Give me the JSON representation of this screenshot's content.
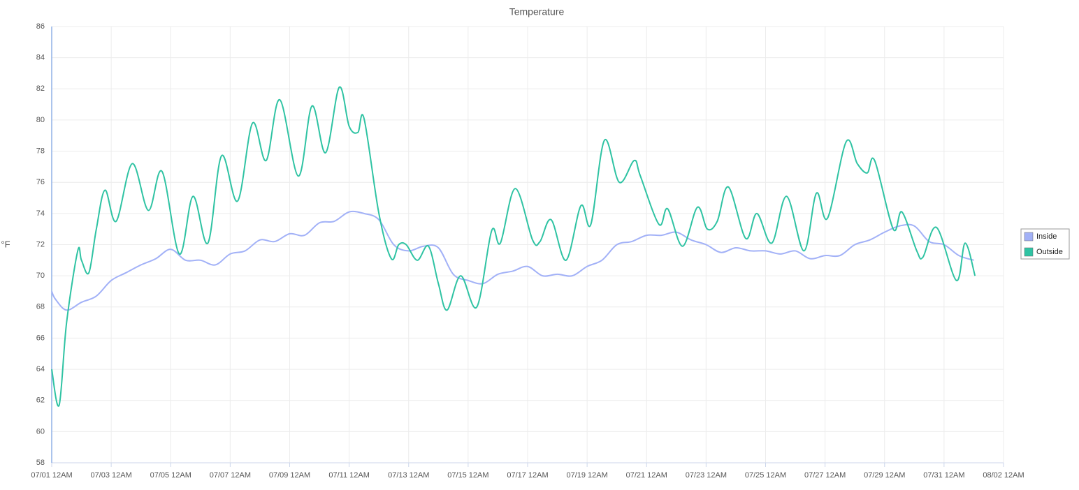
{
  "chart_data": {
    "type": "line",
    "title": "Temperature",
    "y_label": "°F",
    "xlim": [
      "07/01 12AM",
      "08/02 12AM"
    ],
    "xticks": [
      "07/01 12AM",
      "07/03 12AM",
      "07/05 12AM",
      "07/07 12AM",
      "07/09 12AM",
      "07/11 12AM",
      "07/13 12AM",
      "07/15 12AM",
      "07/17 12AM",
      "07/19 12AM",
      "07/21 12AM",
      "07/23 12AM",
      "07/25 12AM",
      "07/27 12AM",
      "07/29 12AM",
      "07/31 12AM",
      "08/02 12AM"
    ],
    "ylim": [
      58,
      86
    ],
    "yticks": [
      58,
      60,
      62,
      64,
      66,
      68,
      70,
      72,
      74,
      76,
      78,
      80,
      82,
      84,
      86
    ],
    "grid": true,
    "legend": "right",
    "series": [
      {
        "name": "Inside",
        "color": "#a2b1f7",
        "x": [
          "07/01 12AM",
          "07/01 3AM",
          "07/01 12PM",
          "07/02 12AM",
          "07/02 12PM",
          "07/03 12AM",
          "07/03 12PM",
          "07/04 12AM",
          "07/04 12PM",
          "07/05 12AM",
          "07/05 12PM",
          "07/06 12AM",
          "07/06 12PM",
          "07/07 12AM",
          "07/07 12PM",
          "07/08 12AM",
          "07/08 12PM",
          "07/09 12AM",
          "07/09 12PM",
          "07/10 12AM",
          "07/10 12PM",
          "07/11 12AM",
          "07/11 12PM",
          "07/12 12AM",
          "07/12 12PM",
          "07/13 12AM",
          "07/13 12PM",
          "07/14 12AM",
          "07/14 12PM",
          "07/15 12AM",
          "07/15 12PM",
          "07/16 12AM",
          "07/16 12PM",
          "07/17 12AM",
          "07/17 12PM",
          "07/18 12AM",
          "07/18 12PM",
          "07/19 12AM",
          "07/19 12PM",
          "07/20 12AM",
          "07/20 12PM",
          "07/21 12AM",
          "07/21 12PM",
          "07/22 12AM",
          "07/22 12PM",
          "07/23 12AM",
          "07/23 12PM",
          "07/24 12AM",
          "07/24 12PM",
          "07/25 12AM",
          "07/25 12PM",
          "07/26 12AM",
          "07/26 12PM",
          "07/27 12AM",
          "07/27 12PM",
          "07/28 12AM",
          "07/28 12PM",
          "07/29 12AM",
          "07/29 12PM",
          "07/30 12AM",
          "07/30 12PM",
          "07/31 12AM",
          "07/31 12PM",
          "08/01 12AM"
        ],
        "values": [
          69.0,
          68.5,
          67.8,
          68.3,
          68.7,
          69.7,
          70.2,
          70.7,
          71.1,
          71.7,
          71.0,
          71.0,
          70.7,
          71.4,
          71.6,
          72.3,
          72.2,
          72.7,
          72.6,
          73.4,
          73.5,
          74.1,
          74.0,
          73.6,
          72.0,
          71.6,
          71.9,
          71.8,
          70.1,
          69.7,
          69.5,
          70.1,
          70.3,
          70.6,
          70.0,
          70.1,
          70.0,
          70.6,
          71.0,
          72.0,
          72.2,
          72.6,
          72.6,
          72.8,
          72.3,
          72.0,
          71.5,
          71.8,
          71.6,
          71.6,
          71.4,
          71.6,
          71.1,
          71.3,
          71.3,
          72.0,
          72.3,
          72.8,
          73.2,
          73.2,
          72.2,
          72.0,
          71.3,
          71.0
        ]
      },
      {
        "name": "Outside",
        "color": "#2fc3a3",
        "x": [
          "07/01 12AM",
          "07/01 6AM",
          "07/01 12PM",
          "07/01 9PM",
          "07/02 12AM",
          "07/02 6AM",
          "07/02 12PM",
          "07/02 7PM",
          "07/03 4AM",
          "07/03 5PM",
          "07/04 6AM",
          "07/04 5PM",
          "07/05 7AM",
          "07/05 6PM",
          "07/06 6AM",
          "07/06 5PM",
          "07/07 6AM",
          "07/07 6PM",
          "07/08 5AM",
          "07/08 4PM",
          "07/09 7AM",
          "07/09 6PM",
          "07/10 5AM",
          "07/10 4PM",
          "07/11 12AM",
          "07/11 7AM",
          "07/11 12PM",
          "07/12 12AM",
          "07/12 10AM",
          "07/12 4PM",
          "07/12 10PM",
          "07/13 7AM",
          "07/13 4PM",
          "07/14 12AM",
          "07/14 7AM",
          "07/14 6PM",
          "07/15 7AM",
          "07/15 7PM",
          "07/16 2AM",
          "07/16 2PM",
          "07/17 4AM",
          "07/17 10AM",
          "07/17 7PM",
          "07/18 7AM",
          "07/18 7PM",
          "07/19 3AM",
          "07/19 2PM",
          "07/20 2AM",
          "07/20 2PM",
          "07/20 7PM",
          "07/21 10AM",
          "07/21 5PM",
          "07/22 5AM",
          "07/22 5PM",
          "07/23 1AM",
          "07/23 9AM",
          "07/23 6PM",
          "07/24 8AM",
          "07/24 5PM",
          "07/25 5AM",
          "07/25 5PM",
          "07/26 7AM",
          "07/26 5PM",
          "07/27 2AM",
          "07/27 5PM",
          "07/28 2AM",
          "07/28 10AM",
          "07/28 4PM",
          "07/29 7AM",
          "07/29 2PM",
          "07/30 2AM",
          "07/30 7AM",
          "07/30 6PM",
          "07/31 10AM",
          "07/31 5PM",
          "08/01 1AM"
        ],
        "values": [
          64.0,
          61.7,
          67.0,
          71.6,
          71.0,
          70.2,
          73.0,
          75.5,
          73.5,
          77.2,
          74.2,
          76.7,
          71.4,
          75.1,
          72.1,
          77.7,
          74.8,
          79.8,
          77.4,
          81.3,
          76.4,
          80.9,
          77.9,
          82.1,
          79.6,
          79.2,
          80.1,
          74.0,
          71.1,
          72.0,
          72.0,
          71.0,
          71.9,
          69.5,
          67.8,
          70.0,
          68.0,
          72.9,
          72.1,
          75.6,
          72.3,
          72.2,
          73.6,
          71.0,
          74.5,
          73.3,
          78.7,
          76.0,
          77.4,
          76.4,
          73.3,
          74.3,
          71.9,
          74.4,
          73.0,
          73.5,
          75.7,
          72.4,
          74.0,
          72.1,
          75.1,
          71.6,
          75.3,
          73.7,
          78.6,
          77.2,
          76.6,
          77.4,
          73.0,
          74.1,
          71.6,
          71.2,
          73.1,
          69.7,
          72.1,
          70.0
        ]
      }
    ]
  }
}
